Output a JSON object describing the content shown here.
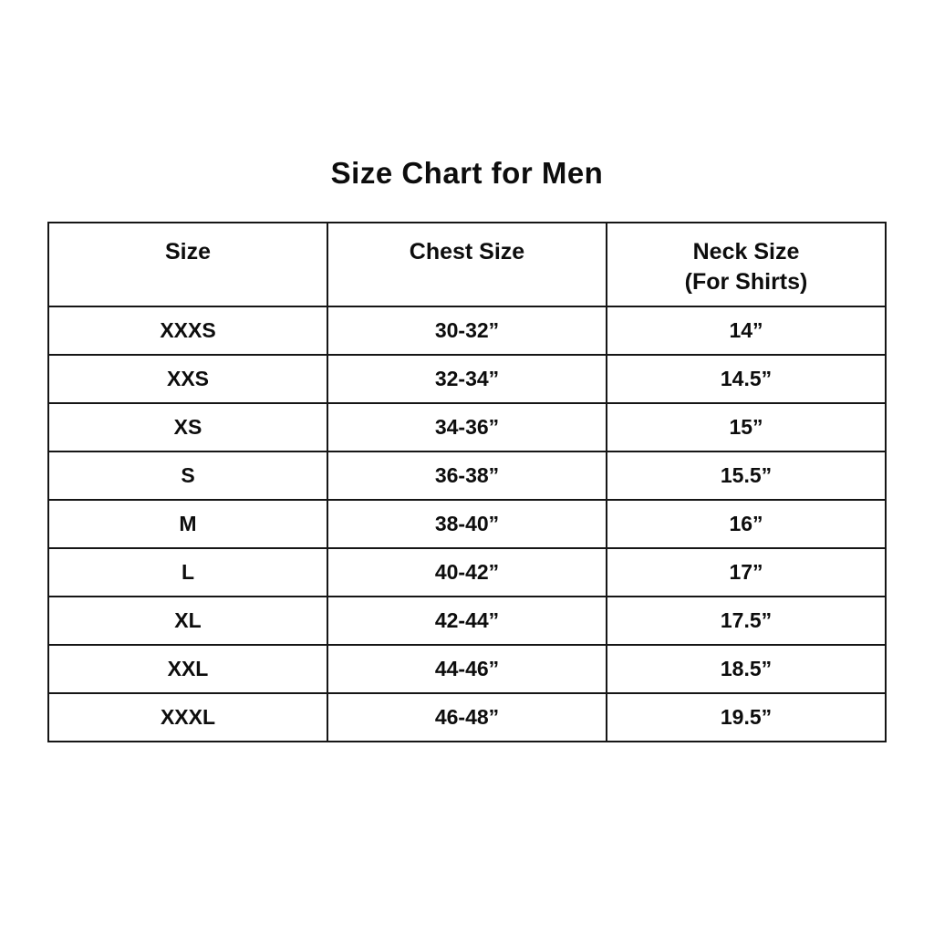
{
  "page": {
    "title": "Size Chart for Men"
  },
  "colors": {
    "background": "#ffffff",
    "border": "#161616",
    "text": "#0d0d0d"
  },
  "chart_data": {
    "type": "table",
    "title": "Size Chart for Men",
    "columns": {
      "size": "Size",
      "chest": "Chest Size",
      "neck": "Neck Size",
      "neck_sub": "(For Shirts)"
    },
    "rows": [
      {
        "size": "XXXS",
        "chest": "30-32”",
        "neck": "14”"
      },
      {
        "size": "XXS",
        "chest": "32-34”",
        "neck": "14.5”"
      },
      {
        "size": "XS",
        "chest": "34-36”",
        "neck": "15”"
      },
      {
        "size": "S",
        "chest": "36-38”",
        "neck": "15.5”"
      },
      {
        "size": "M",
        "chest": "38-40”",
        "neck": "16”"
      },
      {
        "size": "L",
        "chest": "40-42”",
        "neck": "17”"
      },
      {
        "size": "XL",
        "chest": "42-44”",
        "neck": "17.5”"
      },
      {
        "size": "XXL",
        "chest": "44-46”",
        "neck": "18.5”"
      },
      {
        "size": "XXXL",
        "chest": "46-48”",
        "neck": "19.5”"
      }
    ]
  }
}
